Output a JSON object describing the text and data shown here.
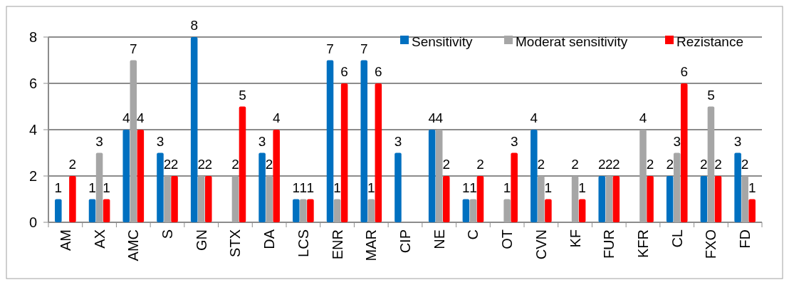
{
  "chart_data": {
    "type": "bar",
    "categories": [
      "AM",
      "AX",
      "AMC",
      "S",
      "GN",
      "STX",
      "DA",
      "LCS",
      "ENR",
      "MAR",
      "CIP",
      "NE",
      "C",
      "OT",
      "CVN",
      "KF",
      "FUR",
      "KFR",
      "CL",
      "FXO",
      "FD"
    ],
    "series": [
      {
        "name": "Sensitivity",
        "color": "#0070c0",
        "values": [
          1,
          1,
          4,
          3,
          8,
          null,
          3,
          1,
          7,
          7,
          3,
          4,
          1,
          null,
          4,
          null,
          2,
          null,
          2,
          2,
          3
        ]
      },
      {
        "name": "Moderat sensitivity",
        "color": "#a6a6a6",
        "values": [
          null,
          3,
          7,
          2,
          2,
          2,
          2,
          1,
          1,
          1,
          null,
          4,
          1,
          1,
          2,
          2,
          2,
          4,
          3,
          5,
          2
        ]
      },
      {
        "name": "Rezistance",
        "color": "#ff0000",
        "values": [
          2,
          1,
          4,
          2,
          2,
          5,
          4,
          1,
          6,
          6,
          null,
          2,
          2,
          3,
          1,
          1,
          2,
          2,
          6,
          2,
          1
        ]
      }
    ],
    "ylim": [
      0,
      8
    ],
    "yticks": [
      0,
      2,
      4,
      6,
      8
    ],
    "grid": "y",
    "legend": "top right",
    "data_labels": true
  }
}
